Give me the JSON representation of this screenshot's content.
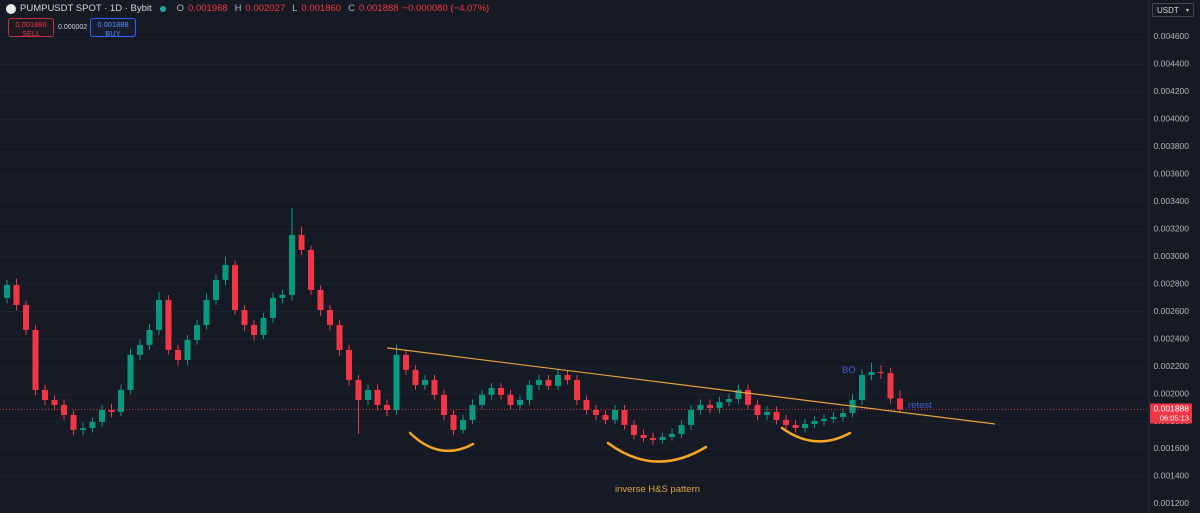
{
  "chart_data": {
    "type": "candlestick",
    "title": "PUMPUSDT SPOT · 1D · Bybit",
    "legend_ohlc": [
      {
        "label": "O",
        "value": "0.001968"
      },
      {
        "label": "H",
        "value": "0.002027"
      },
      {
        "label": "L",
        "value": "0.001860"
      },
      {
        "label": "C",
        "value": "0.001888"
      }
    ],
    "change": "−0.000080 (−4.07%)",
    "sell": {
      "price": "0.001886",
      "label": "SELL"
    },
    "spread": "0.000002",
    "buy": {
      "price": "0.001888",
      "label": "BUY"
    },
    "currency": "USDT",
    "up_color": "#089981",
    "down_color": "#f23645",
    "grid": true,
    "open": [
      0.0027,
      0.002794,
      0.002649,
      0.002467,
      0.00203,
      0.001957,
      0.001921,
      0.001848,
      0.001739,
      0.001753,
      0.001797,
      0.001884,
      0.00187,
      0.00203,
      0.002285,
      0.002358,
      0.002467,
      0.002685,
      0.002321,
      0.002248,
      0.002394,
      0.002503,
      0.002685,
      0.002831,
      0.00294,
      0.002612,
      0.002503,
      0.00243,
      0.002554,
      0.0027,
      0.002722,
      0.003158,
      0.003049,
      0.002758,
      0.002612,
      0.002503,
      0.002321,
      0.002103,
      0.001957,
      0.00203,
      0.001921,
      0.001884,
      0.002285,
      0.002176,
      0.002066,
      0.002103,
      0.001994,
      0.001848,
      0.001739,
      0.001812,
      0.001921,
      0.001994,
      0.002044,
      0.001994,
      0.001921,
      0.001957,
      0.002066,
      0.002103,
      0.00206,
      0.002139,
      0.002103,
      0.001957,
      0.001884,
      0.001848,
      0.001812,
      0.001884,
      0.001775,
      0.001702,
      0.00168,
      0.001666,
      0.001688,
      0.00171,
      0.001775,
      0.001884,
      0.001921,
      0.001899,
      0.001943,
      0.001964,
      0.00203,
      0.001921,
      0.001848,
      0.00187,
      0.001812,
      0.001775,
      0.001753,
      0.001782,
      0.001804,
      0.001819,
      0.001833,
      0.001862,
      0.001957,
      0.002139,
      0.00216,
      0.002153,
      0.001968
    ],
    "high": [
      0.00283,
      0.00284,
      0.00268,
      0.0025,
      0.00207,
      0.00199,
      0.00196,
      0.00188,
      0.00179,
      0.00183,
      0.00192,
      0.00193,
      0.00207,
      0.00233,
      0.0024,
      0.00251,
      0.00274,
      0.00272,
      0.00236,
      0.00243,
      0.00254,
      0.00273,
      0.00287,
      0.003,
      0.00297,
      0.00265,
      0.00254,
      0.00259,
      0.00274,
      0.00276,
      0.003355,
      0.00322,
      0.00308,
      0.00279,
      0.00265,
      0.00254,
      0.00236,
      0.00214,
      0.00207,
      0.00207,
      0.00196,
      0.00236,
      0.00232,
      0.00221,
      0.00214,
      0.00214,
      0.00203,
      0.00188,
      0.00185,
      0.00196,
      0.00203,
      0.00208,
      0.00208,
      0.00203,
      0.00199,
      0.0021,
      0.00214,
      0.00214,
      0.00218,
      0.00217,
      0.00214,
      0.00199,
      0.00192,
      0.00188,
      0.00192,
      0.00192,
      0.00181,
      0.00174,
      0.00172,
      0.00172,
      0.00175,
      0.00181,
      0.00192,
      0.00196,
      0.00196,
      0.00198,
      0.002,
      0.00207,
      0.00207,
      0.00196,
      0.00191,
      0.00191,
      0.00185,
      0.00181,
      0.00182,
      0.00184,
      0.00185,
      0.00187,
      0.0019,
      0.002,
      0.00218,
      0.00223,
      0.00221,
      0.00219,
      0.002027
    ],
    "low": [
      0.00266,
      0.00261,
      0.00243,
      0.00199,
      0.00192,
      0.00188,
      0.00181,
      0.0017,
      0.0017,
      0.00172,
      0.00176,
      0.00183,
      0.00184,
      0.002,
      0.00225,
      0.00232,
      0.00243,
      0.00229,
      0.00221,
      0.00221,
      0.00236,
      0.00247,
      0.00265,
      0.00279,
      0.00258,
      0.00246,
      0.00239,
      0.0024,
      0.00252,
      0.00266,
      0.00268,
      0.00301,
      0.00272,
      0.00257,
      0.00246,
      0.00228,
      0.00206,
      0.00171,
      0.00192,
      0.00188,
      0.00184,
      0.00185,
      0.00214,
      0.00203,
      0.00203,
      0.00196,
      0.00181,
      0.0017,
      0.00171,
      0.00178,
      0.00189,
      0.00196,
      0.00196,
      0.00189,
      0.00189,
      0.00192,
      0.00203,
      0.00203,
      0.00203,
      0.00207,
      0.00192,
      0.00185,
      0.00181,
      0.00178,
      0.00178,
      0.00174,
      0.00167,
      0.00165,
      0.00163,
      0.00164,
      0.00166,
      0.00168,
      0.00174,
      0.00185,
      0.00186,
      0.00186,
      0.00191,
      0.00193,
      0.00189,
      0.00181,
      0.00181,
      0.00178,
      0.00174,
      0.00172,
      0.00172,
      0.00175,
      0.00177,
      0.00179,
      0.0018,
      0.00183,
      0.00192,
      0.0021,
      0.00211,
      0.00193,
      0.00186
    ],
    "close": [
      0.002794,
      0.002649,
      0.002467,
      0.00203,
      0.001957,
      0.001921,
      0.001848,
      0.001739,
      0.001753,
      0.001797,
      0.001884,
      0.00187,
      0.00203,
      0.002285,
      0.002358,
      0.002467,
      0.002685,
      0.002321,
      0.002248,
      0.002394,
      0.002503,
      0.002685,
      0.002831,
      0.00294,
      0.002612,
      0.002503,
      0.00243,
      0.002554,
      0.0027,
      0.002722,
      0.003158,
      0.003049,
      0.002758,
      0.002612,
      0.002503,
      0.002321,
      0.002103,
      0.001957,
      0.00203,
      0.001921,
      0.001884,
      0.002285,
      0.002176,
      0.002066,
      0.002103,
      0.001994,
      0.001848,
      0.001739,
      0.001812,
      0.001921,
      0.001994,
      0.002044,
      0.001994,
      0.001921,
      0.001957,
      0.002066,
      0.002103,
      0.00206,
      0.002139,
      0.002103,
      0.001957,
      0.001884,
      0.001848,
      0.001812,
      0.001884,
      0.001775,
      0.001702,
      0.00168,
      0.001666,
      0.001688,
      0.00171,
      0.001775,
      0.001884,
      0.001921,
      0.001899,
      0.001943,
      0.001964,
      0.00203,
      0.001921,
      0.001848,
      0.00187,
      0.001812,
      0.001775,
      0.001753,
      0.001782,
      0.001804,
      0.001819,
      0.001833,
      0.001862,
      0.001957,
      0.002139,
      0.00216,
      0.002153,
      0.001968,
      0.001888
    ],
    "ylim": [
      0.001134,
      0.004869
    ],
    "yticks": [
      {
        "value": 0.0012,
        "label": "0.001200"
      },
      {
        "value": 0.0014,
        "label": "0.001400"
      },
      {
        "value": 0.0016,
        "label": "0.001600"
      },
      {
        "value": 0.0018,
        "label": "0.001800"
      },
      {
        "value": 0.002,
        "label": "0.002000"
      },
      {
        "value": 0.0022,
        "label": "0.002200"
      },
      {
        "value": 0.0024,
        "label": "0.002400"
      },
      {
        "value": 0.0026,
        "label": "0.002600"
      },
      {
        "value": 0.0028,
        "label": "0.002800"
      },
      {
        "value": 0.003,
        "label": "0.003000"
      },
      {
        "value": 0.0032,
        "label": "0.003200"
      },
      {
        "value": 0.0034,
        "label": "0.003400"
      },
      {
        "value": 0.0036,
        "label": "0.003600"
      },
      {
        "value": 0.0038,
        "label": "0.003800"
      },
      {
        "value": 0.004,
        "label": "0.004000"
      },
      {
        "value": 0.0042,
        "label": "0.004200"
      },
      {
        "value": 0.0044,
        "label": "0.004400"
      },
      {
        "value": 0.0046,
        "label": "0.004600"
      }
    ],
    "last_price": 0.001888,
    "countdown": "06:05:13",
    "trendline": {
      "start": [
        40,
        0.002336
      ],
      "end": [
        104,
        0.001782
      ],
      "color": "#e0a43a"
    },
    "annotations": {
      "breakout": "BO",
      "retest": "retest",
      "pattern": "inverse H&S pattern"
    }
  }
}
